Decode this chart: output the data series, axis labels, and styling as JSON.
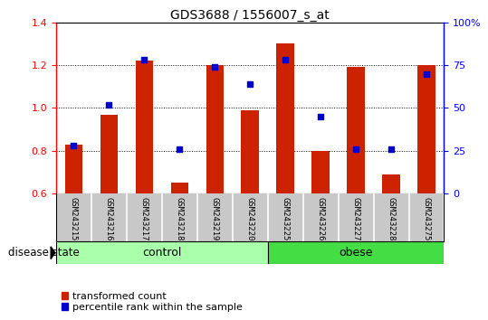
{
  "title": "GDS3688 / 1556007_s_at",
  "samples": [
    "GSM243215",
    "GSM243216",
    "GSM243217",
    "GSM243218",
    "GSM243219",
    "GSM243220",
    "GSM243225",
    "GSM243226",
    "GSM243227",
    "GSM243228",
    "GSM243275"
  ],
  "transformed_count": [
    0.83,
    0.97,
    1.22,
    0.65,
    1.2,
    0.99,
    1.3,
    0.8,
    1.19,
    0.69,
    1.2
  ],
  "percentile_rank": [
    28,
    52,
    78,
    26,
    74,
    64,
    78,
    45,
    26,
    26,
    70
  ],
  "control_indices": [
    0,
    1,
    2,
    3,
    4,
    5
  ],
  "obese_indices": [
    6,
    7,
    8,
    9,
    10
  ],
  "ylim_left": [
    0.6,
    1.4
  ],
  "ylim_right": [
    0,
    100
  ],
  "yticks_left": [
    0.6,
    0.8,
    1.0,
    1.2,
    1.4
  ],
  "yticks_right": [
    0,
    25,
    50,
    75,
    100
  ],
  "ytick_labels_right": [
    "0",
    "25",
    "50",
    "75",
    "100%"
  ],
  "bar_color": "#CC2200",
  "dot_color": "#0000CC",
  "bar_width": 0.5,
  "bg_color": "#C8C8C8",
  "ctrl_color": "#AAFFAA",
  "obese_color": "#44DD44",
  "label_bar": "transformed count",
  "label_dot": "percentile rank within the sample",
  "disease_state_label": "disease state"
}
